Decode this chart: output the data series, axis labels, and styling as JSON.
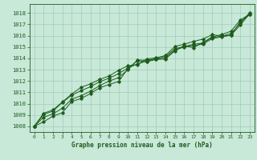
{
  "title": "Graphe pression niveau de la mer (hPa)",
  "background_color": "#c8e8d8",
  "grid_color": "#a0ccbc",
  "line_color": "#1e5c1e",
  "xlim": [
    -0.5,
    23.5
  ],
  "ylim": [
    1007.5,
    1018.8
  ],
  "xticks": [
    0,
    1,
    2,
    3,
    4,
    5,
    6,
    7,
    8,
    9,
    10,
    11,
    12,
    13,
    14,
    15,
    16,
    17,
    18,
    19,
    20,
    21,
    22,
    23
  ],
  "yticks": [
    1008,
    1009,
    1010,
    1011,
    1012,
    1013,
    1014,
    1015,
    1016,
    1017,
    1018
  ],
  "line1": [
    1008.0,
    1008.8,
    1009.1,
    1009.6,
    1010.4,
    1010.7,
    1011.1,
    1011.6,
    1012.0,
    1012.3,
    1013.0,
    1013.85,
    1013.85,
    1013.95,
    1014.0,
    1014.75,
    1015.0,
    1015.15,
    1015.25,
    1015.75,
    1015.9,
    1016.05,
    1017.25,
    1017.85
  ],
  "line2": [
    1008.0,
    1009.05,
    1009.35,
    1010.1,
    1010.75,
    1011.15,
    1011.5,
    1011.95,
    1012.25,
    1012.65,
    1013.15,
    1013.5,
    1013.75,
    1014.0,
    1014.15,
    1014.85,
    1015.05,
    1015.25,
    1015.35,
    1015.85,
    1015.95,
    1016.05,
    1016.95,
    1017.95
  ],
  "line3": [
    1008.0,
    1008.4,
    1008.9,
    1009.2,
    1010.2,
    1010.45,
    1010.9,
    1011.4,
    1011.7,
    1011.95,
    1013.1,
    1013.8,
    1013.7,
    1013.9,
    1013.95,
    1014.65,
    1015.1,
    1014.95,
    1015.4,
    1015.9,
    1016.1,
    1016.4,
    1017.4,
    1017.9
  ],
  "line4": [
    1008.0,
    1009.15,
    1009.45,
    1010.15,
    1010.85,
    1011.45,
    1011.75,
    1012.15,
    1012.45,
    1012.95,
    1013.35,
    1013.45,
    1013.95,
    1014.05,
    1014.25,
    1015.05,
    1015.25,
    1015.5,
    1015.7,
    1016.1,
    1015.95,
    1016.2,
    1017.1,
    1018.05
  ]
}
